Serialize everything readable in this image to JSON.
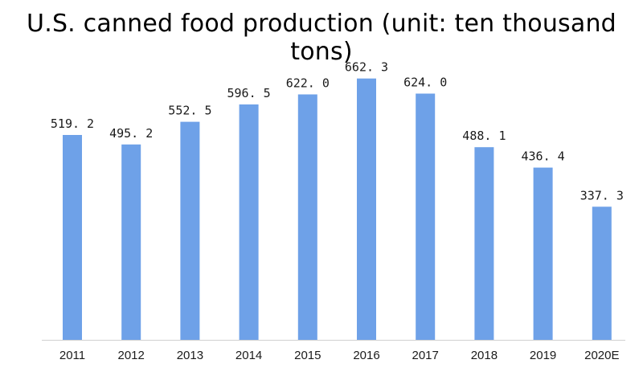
{
  "chart_data": {
    "type": "bar",
    "title": "U.S. canned food production (unit: ten thousand tons)",
    "categories": [
      "2011",
      "2012",
      "2013",
      "2014",
      "2015",
      "2016",
      "2017",
      "2018",
      "2019",
      "2020E"
    ],
    "values": [
      519.2,
      495.2,
      552.5,
      596.5,
      622.0,
      662.3,
      624.0,
      488.1,
      436.4,
      337.3
    ],
    "value_labels": [
      "519. 2",
      "495. 2",
      "552. 5",
      "596. 5",
      "622. 0",
      "662. 3",
      "624. 0",
      "488. 1",
      "436. 4",
      "337. 3"
    ],
    "xlabel": "",
    "ylabel": "",
    "ylim": [
      0,
      700
    ],
    "grid": false,
    "colors": {
      "bar": "#6ea1e8",
      "text": "#1a1a1a",
      "axis": "#d0d0d0"
    }
  }
}
